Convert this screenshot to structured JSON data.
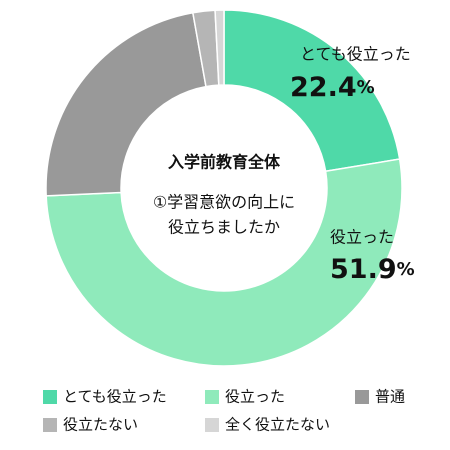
{
  "chart_data": {
    "type": "donut",
    "center_title": "入学前教育全体",
    "center_subtitle": [
      "①学習意欲の向上に",
      "役立ちましたか"
    ],
    "series": [
      {
        "name": "とても役立った",
        "color": "#4fd9a8",
        "values": [
          22.4
        ],
        "value_labels": [
          "22.4%"
        ]
      },
      {
        "name": "役立った",
        "color": "#8feabb",
        "values": [
          51.9
        ],
        "value_labels": [
          "51.9%"
        ]
      },
      {
        "name": "普通",
        "color": "#999999",
        "values": [
          22.9
        ],
        "value_labels": [
          null
        ]
      },
      {
        "name": "役立たない",
        "color": "#b5b5b5",
        "values": [
          2.0
        ],
        "value_labels": [
          null
        ]
      },
      {
        "name": "全く役立たない",
        "color": "#d6d6d6",
        "values": [
          0.8
        ],
        "value_labels": [
          null
        ]
      }
    ],
    "legend": "bottom"
  }
}
